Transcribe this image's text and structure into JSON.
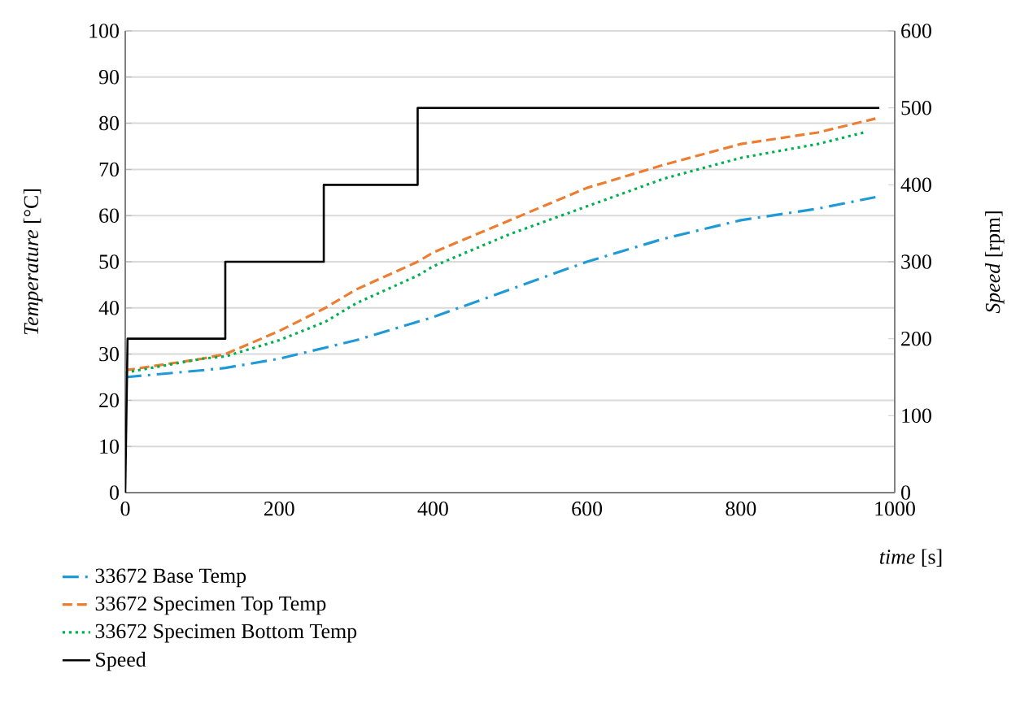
{
  "chart_data": {
    "type": "line",
    "xlabel": "*time* [s]",
    "ylabel": "*Temperature* [°C]",
    "y2label": "*Speed* [rpm]",
    "xlim": [
      0,
      1000
    ],
    "xticks": [
      0,
      200,
      400,
      600,
      800,
      1000
    ],
    "ylim": [
      0,
      100
    ],
    "yticks": [
      0,
      10,
      20,
      30,
      40,
      50,
      60,
      70,
      80,
      90,
      100
    ],
    "y2lim": [
      0,
      600
    ],
    "y2ticks": [
      0,
      100,
      200,
      300,
      400,
      500,
      600
    ],
    "grid": "y",
    "legend": "bottom",
    "series": [
      {
        "name": "33672 Base Temp",
        "color": "#1f9ad6",
        "line_style": "dashdot",
        "x": [
          0,
          100,
          130,
          200,
          300,
          400,
          500,
          600,
          700,
          800,
          900,
          975
        ],
        "values": [
          25,
          26.5,
          27,
          29,
          33,
          38,
          44,
          50,
          55,
          59,
          61.5,
          64
        ]
      },
      {
        "name": "33672 Specimen Top Temp",
        "color": "#ed7d31",
        "line_style": "dashed",
        "x": [
          0,
          100,
          130,
          200,
          260,
          300,
          380,
          400,
          500,
          600,
          700,
          800,
          900,
          975
        ],
        "values": [
          26.5,
          29,
          30,
          35,
          40,
          44,
          50,
          52,
          59,
          66,
          71,
          75.5,
          78,
          81
        ]
      },
      {
        "name": "33672 Specimen Bottom Temp",
        "color": "#00b050",
        "line_style": "dotted",
        "x": [
          0,
          100,
          130,
          200,
          260,
          300,
          380,
          400,
          500,
          600,
          700,
          800,
          900,
          960
        ],
        "values": [
          26,
          29,
          29.5,
          33,
          37,
          41,
          47,
          49,
          56,
          62,
          68,
          72.5,
          75.5,
          78
        ]
      },
      {
        "name": "Speed",
        "color": "#000000",
        "line_style": "solid",
        "axis": "y2",
        "x": [
          0,
          3,
          130,
          130,
          258,
          258,
          380,
          380,
          980
        ],
        "values": [
          0,
          200,
          200,
          300,
          300,
          400,
          400,
          500,
          500
        ]
      }
    ]
  }
}
